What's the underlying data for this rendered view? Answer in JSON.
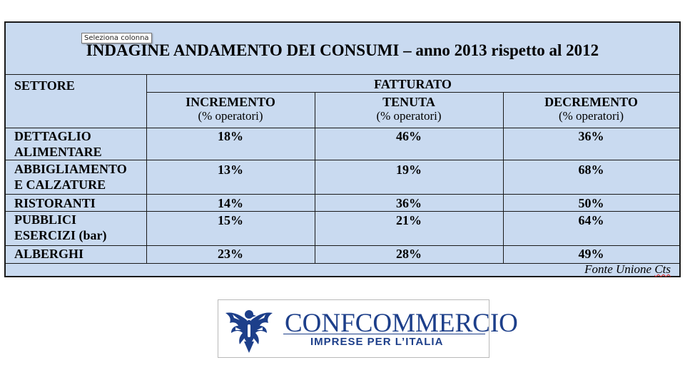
{
  "report": {
    "title": "INDAGINE ANDAMENTO DEI CONSUMI – anno 2013 rispetto al 2012",
    "tooltip": "Seleziona colonna",
    "header": {
      "settore": "SETTORE",
      "fatturato": "FATTURATO",
      "columns": [
        {
          "label": "INCREMENTO",
          "sub": "(% operatori)"
        },
        {
          "label": "TENUTA",
          "sub": "(% operatori)"
        },
        {
          "label": "DECREMENTO",
          "sub": "(% operatori)"
        }
      ]
    },
    "rows": [
      {
        "sector_line1": "DETTAGLIO",
        "sector_line2": "ALIMENTARE",
        "incremento": "18%",
        "tenuta": "46%",
        "decremento": "36%"
      },
      {
        "sector_line1": "ABBIGLIAMENTO",
        "sector_line2": "E CALZATURE",
        "incremento": "13%",
        "tenuta": "19%",
        "decremento": "68%"
      },
      {
        "sector_line1": "RISTORANTI",
        "sector_line2": "",
        "incremento": "14%",
        "tenuta": "36%",
        "decremento": "50%"
      },
      {
        "sector_line1": "PUBBLICI",
        "sector_line2": "ESERCIZI (bar)",
        "incremento": "15%",
        "tenuta": "21%",
        "decremento": "64%"
      },
      {
        "sector_line1": "ALBERGHI",
        "sector_line2": "",
        "incremento": "23%",
        "tenuta": "28%",
        "decremento": "49%"
      }
    ],
    "source_prefix": "Fonte Unione ",
    "source_suffix": "Cts"
  },
  "logo": {
    "name": "CONFCOMMERCIO",
    "tagline": "IMPRESE PER L’ITALIA",
    "brand_color": "#1d3f8a"
  }
}
